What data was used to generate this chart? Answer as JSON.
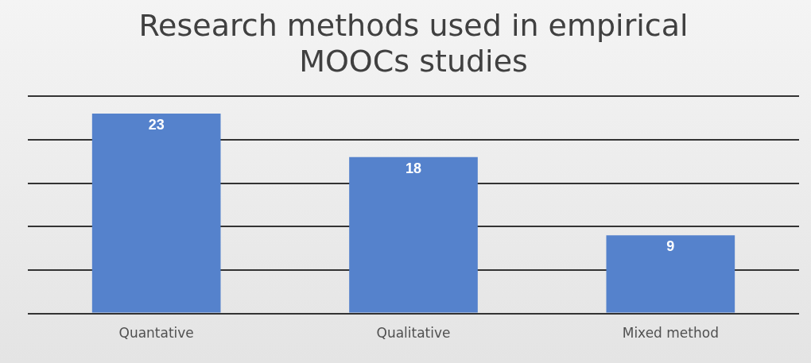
{
  "chart_data": {
    "type": "bar",
    "title": "Research methods used in empirical MOOCs studies",
    "categories": [
      "Quantative",
      "Qualitative",
      "Mixed method"
    ],
    "values": [
      23,
      18,
      9
    ],
    "color": "#5582cc",
    "ylim": [
      0,
      25
    ],
    "yticks": [
      {
        "value": 0,
        "label": null
      },
      {
        "value": 5,
        "label": null
      },
      {
        "value": 10,
        "label": null
      },
      {
        "value": 15,
        "label": null
      },
      {
        "value": 20,
        "label": null
      },
      {
        "value": 25,
        "label": null
      }
    ],
    "grid": "y",
    "tick_labels": "x",
    "data_labels": true,
    "legend": false
  }
}
